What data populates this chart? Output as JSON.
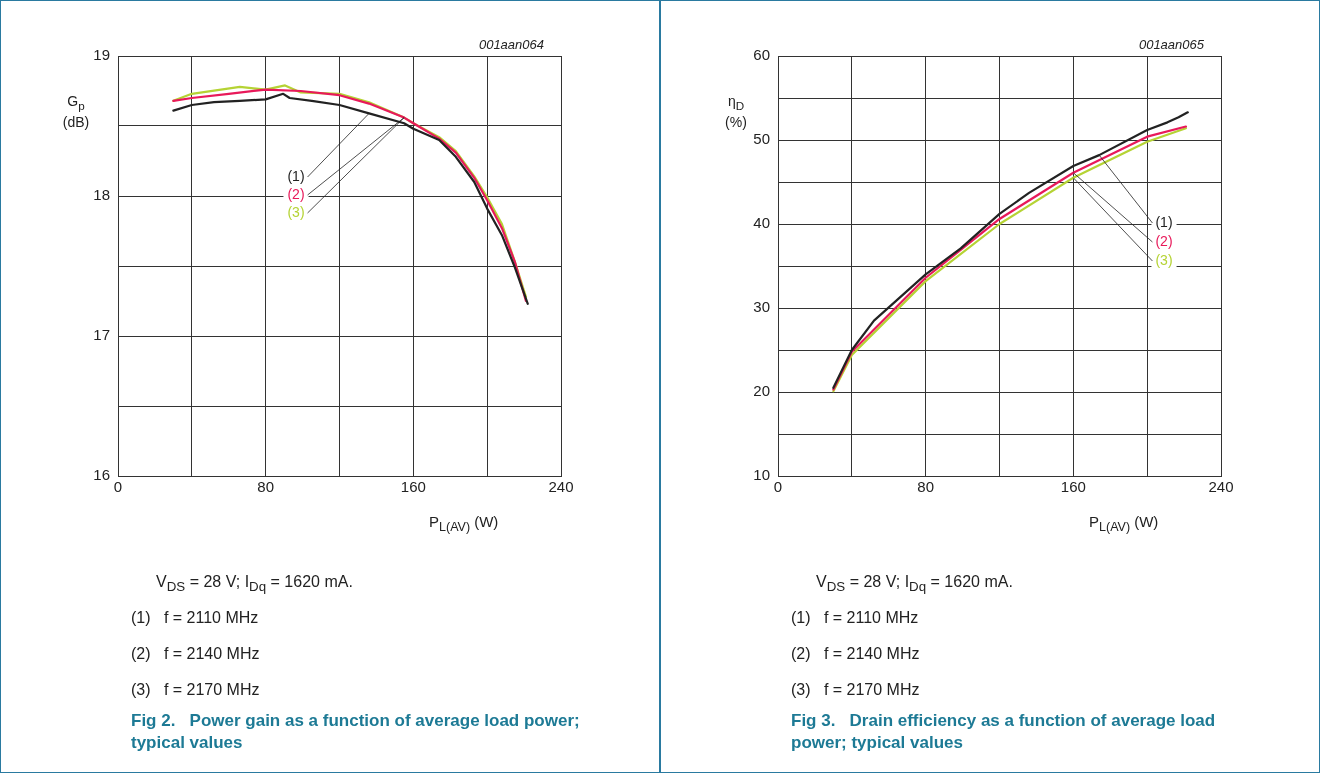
{
  "chart_data": [
    {
      "type": "line",
      "title": "Fig 2.   Power gain as a function of average load power; typical values",
      "xlabel": "P$_{L(AV)}$ (W)",
      "ylabel": "G$_{p}$ (dB)",
      "xlim": [
        0,
        240
      ],
      "xticks": [
        0,
        {
          "value": 40,
          "label": null
        },
        80,
        {
          "value": 120,
          "label": null
        },
        160,
        {
          "value": 200,
          "label": null
        },
        240
      ],
      "ylim": [
        16,
        19
      ],
      "yticks": [
        16,
        {
          "value": 16.5,
          "label": null
        },
        17,
        {
          "value": 17.5,
          "label": null
        },
        18,
        {
          "value": 18.5,
          "label": null
        },
        19
      ],
      "grid": true,
      "legend": false,
      "line_style": "solid",
      "annotations": [
        "001aan064",
        "V$_{DS}$ = 28 V; I$_{Dq}$ = 1620 mA.",
        "(1)   f = 2110 MHz",
        "(2)   f = 2140 MHz",
        "(3)   f = 2170 MHz"
      ],
      "series": [
        {
          "name": "(1)",
          "color": "#222222",
          "x": [
            30,
            40,
            52,
            66,
            80,
            89.5,
            93,
            105,
            120,
            136,
            155,
            160,
            174,
            183,
            193,
            200,
            208,
            215,
            222
          ],
          "values": [
            18.61,
            18.65,
            18.67,
            18.68,
            18.69,
            18.73,
            18.7,
            18.68,
            18.65,
            18.59,
            18.52,
            18.48,
            18.4,
            18.28,
            18.1,
            17.91,
            17.72,
            17.49,
            17.23
          ]
        },
        {
          "name": "(2)",
          "color": "#e8195a",
          "x": [
            30,
            40,
            60,
            80,
            99,
            120,
            136,
            155,
            160,
            174,
            183,
            193,
            200,
            208,
            215,
            221
          ],
          "values": [
            18.68,
            18.7,
            18.73,
            18.76,
            18.75,
            18.72,
            18.66,
            18.56,
            18.52,
            18.41,
            18.31,
            18.13,
            17.97,
            17.77,
            17.53,
            17.25
          ]
        },
        {
          "name": "(3)",
          "color": "#b5d334",
          "x": [
            30,
            40,
            66,
            80,
            90.5,
            99,
            120,
            136,
            155,
            160,
            174,
            183,
            193,
            200,
            208,
            215,
            221
          ],
          "values": [
            18.68,
            18.73,
            18.78,
            18.76,
            18.79,
            18.74,
            18.73,
            18.67,
            18.56,
            18.52,
            18.42,
            18.32,
            18.14,
            17.99,
            17.8,
            17.53,
            17.28
          ]
        }
      ]
    },
    {
      "type": "line",
      "title": "Fig 3.   Drain efficiency as a function of average load power; typical values",
      "xlabel": "P$_{L(AV)}$ (W)",
      "ylabel": "η$_{D}$ (%)",
      "xlim": [
        0,
        240
      ],
      "xticks": [
        0,
        {
          "value": 40,
          "label": null
        },
        80,
        {
          "value": 120,
          "label": null
        },
        160,
        {
          "value": 200,
          "label": null
        },
        240
      ],
      "ylim": [
        10,
        60
      ],
      "yticks": [
        10,
        {
          "value": 15,
          "label": null
        },
        20,
        {
          "value": 25,
          "label": null
        },
        30,
        {
          "value": 35,
          "label": null
        },
        40,
        {
          "value": 45,
          "label": null
        },
        50,
        {
          "value": 55,
          "label": null
        },
        60
      ],
      "grid": true,
      "legend": false,
      "line_style": "solid",
      "annotations": [
        "001aan065",
        "V$_{DS}$ = 28 V; I$_{Dq}$ = 1620 mA.",
        "(1)   f = 2110 MHz",
        "(2)   f = 2140 MHz",
        "(3)   f = 2170 MHz"
      ],
      "series": [
        {
          "name": "(1)",
          "color": "#222222",
          "x": [
            30,
            40,
            52,
            80,
            99,
            120,
            136,
            160,
            174,
            200,
            211,
            217,
            222
          ],
          "values": [
            20.5,
            25,
            28.5,
            34,
            37.1,
            41.2,
            43.7,
            46.9,
            48.2,
            51.2,
            52.1,
            52.7,
            53.3
          ]
        },
        {
          "name": "(2)",
          "color": "#e8195a",
          "x": [
            30,
            40,
            80,
            120,
            160,
            200,
            221
          ],
          "values": [
            20.3,
            24.8,
            33.6,
            40.6,
            46.1,
            50.4,
            51.6
          ]
        },
        {
          "name": "(3)",
          "color": "#b5d334",
          "x": [
            30,
            40,
            80,
            120,
            160,
            200,
            221
          ],
          "values": [
            20.1,
            24.4,
            33.2,
            40,
            45.5,
            49.8,
            51.4
          ]
        }
      ]
    }
  ]
}
